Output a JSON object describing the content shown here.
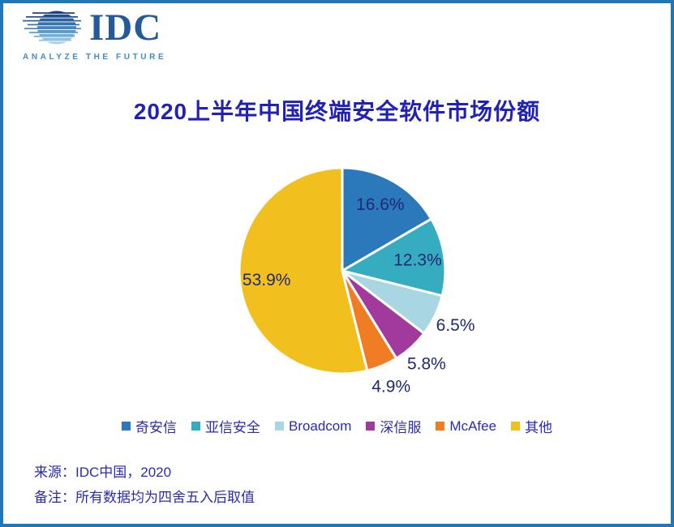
{
  "logo": {
    "brand": "IDC",
    "tagline": "ANALYZE THE FUTURE"
  },
  "title": "2020上半年中国终端安全软件市场份额",
  "chart_data": {
    "type": "pie",
    "title": "2020上半年中国终端安全软件市场份额",
    "categories": [
      "奇安信",
      "亚信安全",
      "Broadcom",
      "深信服",
      "McAfee",
      "其他"
    ],
    "values": [
      16.6,
      12.3,
      6.5,
      5.8,
      4.9,
      53.9
    ],
    "value_labels": [
      "16.6%",
      "12.3%",
      "6.5%",
      "5.8%",
      "4.9%",
      "53.9%"
    ],
    "colors": [
      "#2B79BB",
      "#35ACC0",
      "#A8D6E2",
      "#A13A9C",
      "#F07D24",
      "#F2C01E"
    ],
    "unit": "%",
    "start_angle_deg": 0,
    "direction": "clockwise",
    "slice_border_color": "#FFFFFF",
    "legend_position": "bottom"
  },
  "footer": {
    "source": "来源：IDC中国，2020",
    "note": "备注：所有数据均为四舍五入后取值"
  },
  "colors": {
    "page_border": "#2176B5",
    "title_text": "#2121B4",
    "body_text": "#2B2BAD",
    "slice_label_text": "#1F2877",
    "logo_brand": "#24599B",
    "logo_tagline": "#3E8CC8"
  }
}
